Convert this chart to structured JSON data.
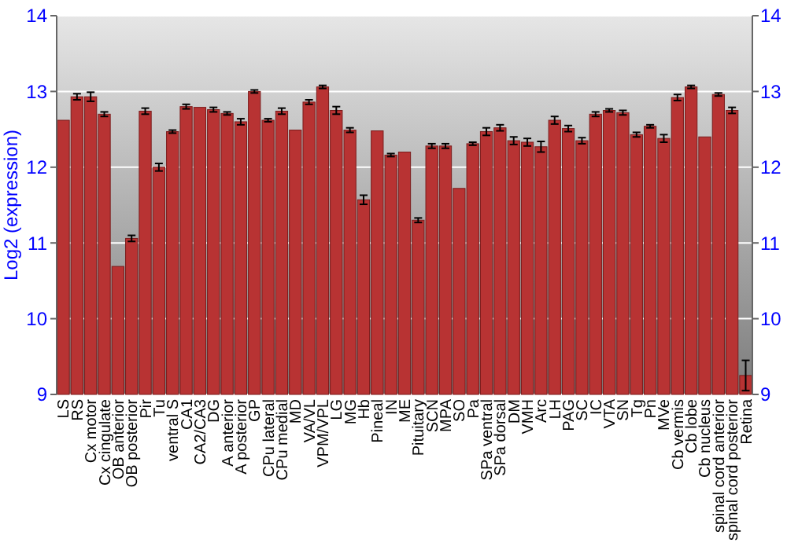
{
  "chart_data": {
    "type": "bar",
    "ylabel": "Log2 (expression)",
    "categories": [
      "LS",
      "RS",
      "Cx motor",
      "Cx cingulate",
      "OB anterior",
      "OB posterior",
      "Pir",
      "Tu",
      "ventral S",
      "CA1",
      "CA2/CA3",
      "DG",
      "A anterior",
      "A posterior",
      "GP",
      "CPu lateral",
      "CPu medial",
      "MD",
      "VA/VL",
      "VPM/VPL",
      "LG",
      "MG",
      "Hb",
      "Pineal",
      "IN",
      "ME",
      "Pituitary",
      "SCN",
      "MPA",
      "SO",
      "Pa",
      "SPa ventral",
      "SPa dorsal",
      "DM",
      "VMH",
      "Arc",
      "LH",
      "PAG",
      "SC",
      "IC",
      "VTA",
      "SN",
      "Tg",
      "Pn",
      "MVe",
      "Cb vermis",
      "Cb lobe",
      "Cb nucleus",
      "spinal cord anterior",
      "spinal cord posterior",
      "Retina"
    ],
    "values": [
      12.62,
      12.93,
      12.93,
      12.7,
      10.69,
      11.06,
      12.74,
      12.0,
      12.47,
      12.8,
      12.79,
      12.76,
      12.71,
      12.6,
      13.0,
      12.62,
      12.74,
      12.49,
      12.86,
      13.06,
      12.75,
      12.49,
      11.57,
      12.48,
      12.16,
      12.2,
      11.3,
      12.28,
      12.28,
      11.72,
      12.31,
      12.47,
      12.52,
      12.35,
      12.33,
      12.27,
      12.62,
      12.51,
      12.35,
      12.7,
      12.75,
      12.72,
      12.43,
      12.54,
      12.38,
      12.92,
      13.06,
      12.4,
      12.96,
      12.75,
      9.25
    ],
    "errors": [
      null,
      0.04,
      0.06,
      0.03,
      null,
      0.04,
      0.04,
      0.05,
      0.02,
      0.03,
      null,
      0.03,
      0.02,
      0.04,
      0.02,
      0.02,
      0.04,
      null,
      0.03,
      0.02,
      0.05,
      0.03,
      0.06,
      null,
      0.02,
      null,
      0.03,
      0.03,
      0.03,
      null,
      0.02,
      0.05,
      0.04,
      0.05,
      0.05,
      0.07,
      0.05,
      0.04,
      0.04,
      0.03,
      0.02,
      0.03,
      0.03,
      0.02,
      0.05,
      0.04,
      0.02,
      null,
      0.02,
      0.04,
      0.2
    ],
    "color": "#b83333",
    "ylim": [
      9,
      14
    ],
    "yticks": [
      9,
      10,
      11,
      12,
      13,
      14
    ],
    "y2lim": [
      9,
      14
    ],
    "y2ticks": [
      9,
      10,
      11,
      12,
      13,
      14
    ],
    "grid": "y"
  }
}
